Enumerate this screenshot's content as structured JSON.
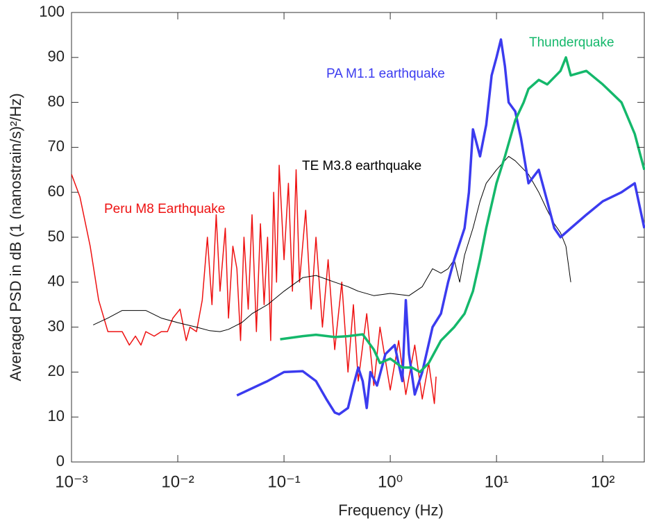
{
  "chart_data": {
    "type": "line",
    "xscale": "log",
    "xlabel": "Frequency (Hz)",
    "ylabel": "Averaged PSD in dB (1 (nanostrain/s)²/Hz)",
    "xlim": [
      0.001,
      246
    ],
    "ylim": [
      0,
      100
    ],
    "xticks": [
      {
        "value": 0.001,
        "label": "10⁻³"
      },
      {
        "value": 0.01,
        "label": "10⁻²"
      },
      {
        "value": 0.1,
        "label": "10⁻¹"
      },
      {
        "value": 1,
        "label": "10⁰"
      },
      {
        "value": 10,
        "label": "10¹"
      },
      {
        "value": 100,
        "label": "10²"
      }
    ],
    "yticks": [
      0,
      10,
      20,
      30,
      40,
      50,
      60,
      70,
      80,
      90,
      100
    ],
    "grid": false,
    "series": [
      {
        "name": "Peru M8 Earthquake",
        "color": "#ee1111",
        "width": 1.5,
        "x": [
          0.001,
          0.0012,
          0.0015,
          0.0018,
          0.0022,
          0.003,
          0.0035,
          0.004,
          0.0045,
          0.005,
          0.006,
          0.007,
          0.008,
          0.009,
          0.0105,
          0.012,
          0.013,
          0.015,
          0.017,
          0.019,
          0.021,
          0.023,
          0.025,
          0.028,
          0.03,
          0.033,
          0.036,
          0.039,
          0.042,
          0.046,
          0.05,
          0.055,
          0.06,
          0.065,
          0.07,
          0.075,
          0.08,
          0.085,
          0.09,
          0.1,
          0.11,
          0.12,
          0.13,
          0.14,
          0.16,
          0.18,
          0.2,
          0.23,
          0.26,
          0.3,
          0.35,
          0.4,
          0.45,
          0.5,
          0.6,
          0.7,
          0.8,
          1.0,
          1.2,
          1.4,
          1.7,
          2.0,
          2.3,
          2.6,
          2.7
        ],
        "values": [
          64,
          59,
          48,
          36,
          29,
          29,
          26,
          28,
          26,
          29,
          28,
          29,
          29,
          32,
          34,
          27,
          30,
          29,
          36,
          50,
          35,
          55,
          38,
          52,
          32,
          48,
          43,
          27,
          50,
          34,
          55,
          29,
          53,
          35,
          50,
          27,
          60,
          40,
          66,
          45,
          62,
          38,
          65,
          40,
          56,
          34,
          50,
          30,
          45,
          25,
          40,
          20,
          35,
          18,
          33,
          17,
          30,
          16,
          27,
          15,
          26,
          14,
          22,
          13,
          19
        ]
      },
      {
        "name": "TE M3.8 earthquake",
        "color": "#000000",
        "width": 1,
        "x": [
          0.0016,
          0.0022,
          0.003,
          0.005,
          0.007,
          0.01,
          0.015,
          0.02,
          0.025,
          0.03,
          0.04,
          0.05,
          0.07,
          0.1,
          0.15,
          0.2,
          0.3,
          0.4,
          0.5,
          0.7,
          1,
          1.5,
          2,
          2.5,
          3,
          3.5,
          4,
          4.5,
          5,
          6,
          7,
          8,
          10,
          13,
          15,
          20,
          25,
          30,
          35,
          40,
          45,
          50
        ],
        "values": [
          30.5,
          32,
          33.7,
          33.7,
          32,
          31,
          30,
          29.2,
          29,
          29.5,
          31,
          33,
          35,
          38,
          41,
          41.5,
          40,
          39,
          38,
          37,
          37.5,
          37,
          39,
          43,
          42,
          43,
          45,
          40,
          46,
          52,
          58,
          62,
          65,
          68,
          67,
          64,
          60,
          56,
          53,
          51,
          48,
          40
        ]
      },
      {
        "name": "PA M1.1 earthquake",
        "color": "#3b3bef",
        "width": 3.5,
        "x": [
          0.036,
          0.07,
          0.1,
          0.15,
          0.2,
          0.25,
          0.3,
          0.33,
          0.4,
          0.45,
          0.5,
          0.55,
          0.6,
          0.65,
          0.75,
          0.9,
          1.1,
          1.3,
          1.4,
          1.5,
          1.7,
          2,
          2.5,
          3,
          3.5,
          4,
          5,
          5.5,
          6,
          7,
          8,
          9,
          10,
          11,
          12,
          13,
          15,
          17,
          20,
          25,
          30,
          35,
          40,
          50,
          70,
          100,
          150,
          200,
          246
        ],
        "values": [
          14.8,
          18,
          20,
          20.2,
          18,
          14,
          11,
          10.6,
          12,
          17,
          21,
          18,
          12,
          20,
          17,
          24,
          26,
          18,
          36,
          24,
          15,
          20,
          30,
          33,
          40,
          45,
          52,
          60,
          74,
          68,
          75,
          86,
          90,
          94,
          88,
          80,
          78,
          72,
          62,
          65,
          58,
          52,
          50,
          52,
          55,
          58,
          60,
          62,
          52
        ]
      },
      {
        "name": "Thunderquake",
        "color": "#14b86b",
        "width": 3.5,
        "x": [
          0.092,
          0.15,
          0.2,
          0.3,
          0.4,
          0.55,
          0.7,
          0.8,
          1,
          1.3,
          1.6,
          1.9,
          2.3,
          3,
          4,
          5,
          6,
          7,
          8,
          10,
          12,
          15,
          18,
          20,
          25,
          30,
          40,
          45,
          50,
          70,
          100,
          150,
          200,
          246
        ],
        "values": [
          27.3,
          28,
          28.3,
          27.8,
          28,
          28.4,
          25,
          22,
          23,
          21,
          21,
          20,
          22,
          27,
          30,
          33,
          38,
          45,
          52,
          62,
          68,
          76,
          80,
          83,
          85,
          84,
          87,
          90,
          86,
          87,
          84,
          80,
          73,
          65
        ]
      }
    ]
  }
}
